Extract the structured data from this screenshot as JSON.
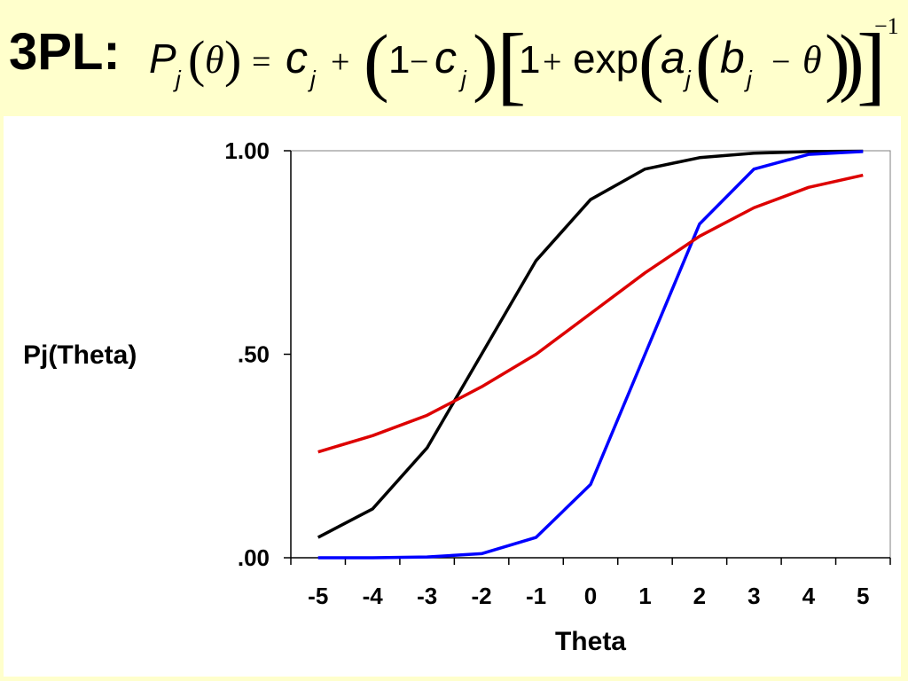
{
  "slide": {
    "title": "3PL:",
    "formula": {
      "lhs_P": "P",
      "sub_j": "j",
      "open_paren": "(",
      "theta": "θ",
      "close_paren": ")",
      "equals": "=",
      "c": "c",
      "plus": "+",
      "one": "1",
      "minus": "−",
      "open_bracket": "[",
      "close_bracket": "]",
      "exp": "exp",
      "a": "a",
      "b": "b",
      "power": "−1"
    }
  },
  "chart_data": {
    "type": "line",
    "title": "",
    "xlabel": "Theta",
    "ylabel": "Pj(Theta)",
    "x": [
      -5,
      -4,
      -3,
      -2,
      -1,
      0,
      1,
      2,
      3,
      4,
      5
    ],
    "xticks": [
      "-5",
      "-4",
      "-3",
      "-2",
      "-1",
      "0",
      "1",
      "2",
      "3",
      "4",
      "5"
    ],
    "xlim": [
      -5.5,
      5.5
    ],
    "ylim": [
      0,
      1
    ],
    "yticks": [
      0,
      0.5,
      1
    ],
    "ytick_labels": [
      ".00",
      ".50",
      "1.00"
    ],
    "grid": false,
    "legend": "none",
    "series": [
      {
        "color": "#000000",
        "values": [
          0.05,
          0.12,
          0.27,
          0.5,
          0.73,
          0.88,
          0.955,
          0.983,
          0.994,
          0.998,
          0.999
        ]
      },
      {
        "color": "#0000ff",
        "values": [
          0.0,
          0.0,
          0.002,
          0.01,
          0.05,
          0.18,
          0.5,
          0.82,
          0.955,
          0.991,
          0.998
        ]
      },
      {
        "color": "#dd0000",
        "values": [
          0.26,
          0.3,
          0.35,
          0.42,
          0.5,
          0.6,
          0.7,
          0.79,
          0.86,
          0.91,
          0.94
        ]
      }
    ]
  }
}
